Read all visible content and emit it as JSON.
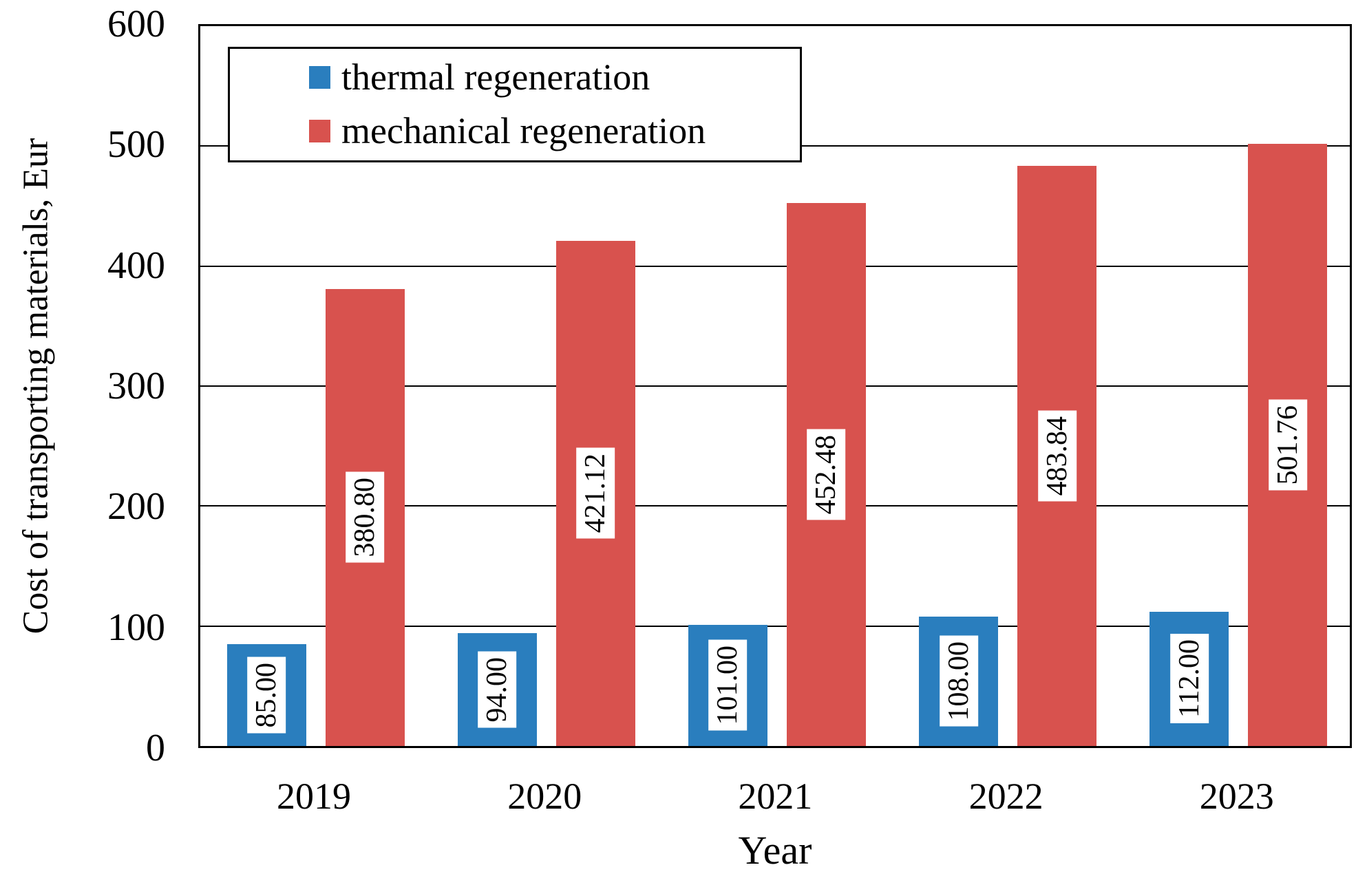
{
  "chart_data": {
    "type": "bar",
    "title": "",
    "xlabel": "Year",
    "ylabel": "Cost of transporting materials, Eur",
    "categories": [
      "2019",
      "2020",
      "2021",
      "2022",
      "2023"
    ],
    "series": [
      {
        "name": "thermal regeneration",
        "color": "#2A7EBE",
        "values": [
          85.0,
          94.0,
          101.0,
          108.0,
          112.0
        ],
        "labels": [
          "85.00",
          "94.00",
          "101.00",
          "108.00",
          "112.00"
        ]
      },
      {
        "name": "mechanical regeneration",
        "color": "#D8524E",
        "values": [
          380.8,
          421.12,
          452.48,
          483.84,
          501.76
        ],
        "labels": [
          "380.80",
          "421.12",
          "452.48",
          "483.84",
          "501.76"
        ]
      }
    ],
    "ylim": [
      0,
      600
    ],
    "yticks": [
      0,
      100,
      200,
      300,
      400,
      500,
      600
    ],
    "grid": "horizontal",
    "legend_position": "top-left",
    "bar_label_style": "rotated-90-in-white-box",
    "axis_color": "#000000",
    "background_color": "#ffffff"
  }
}
